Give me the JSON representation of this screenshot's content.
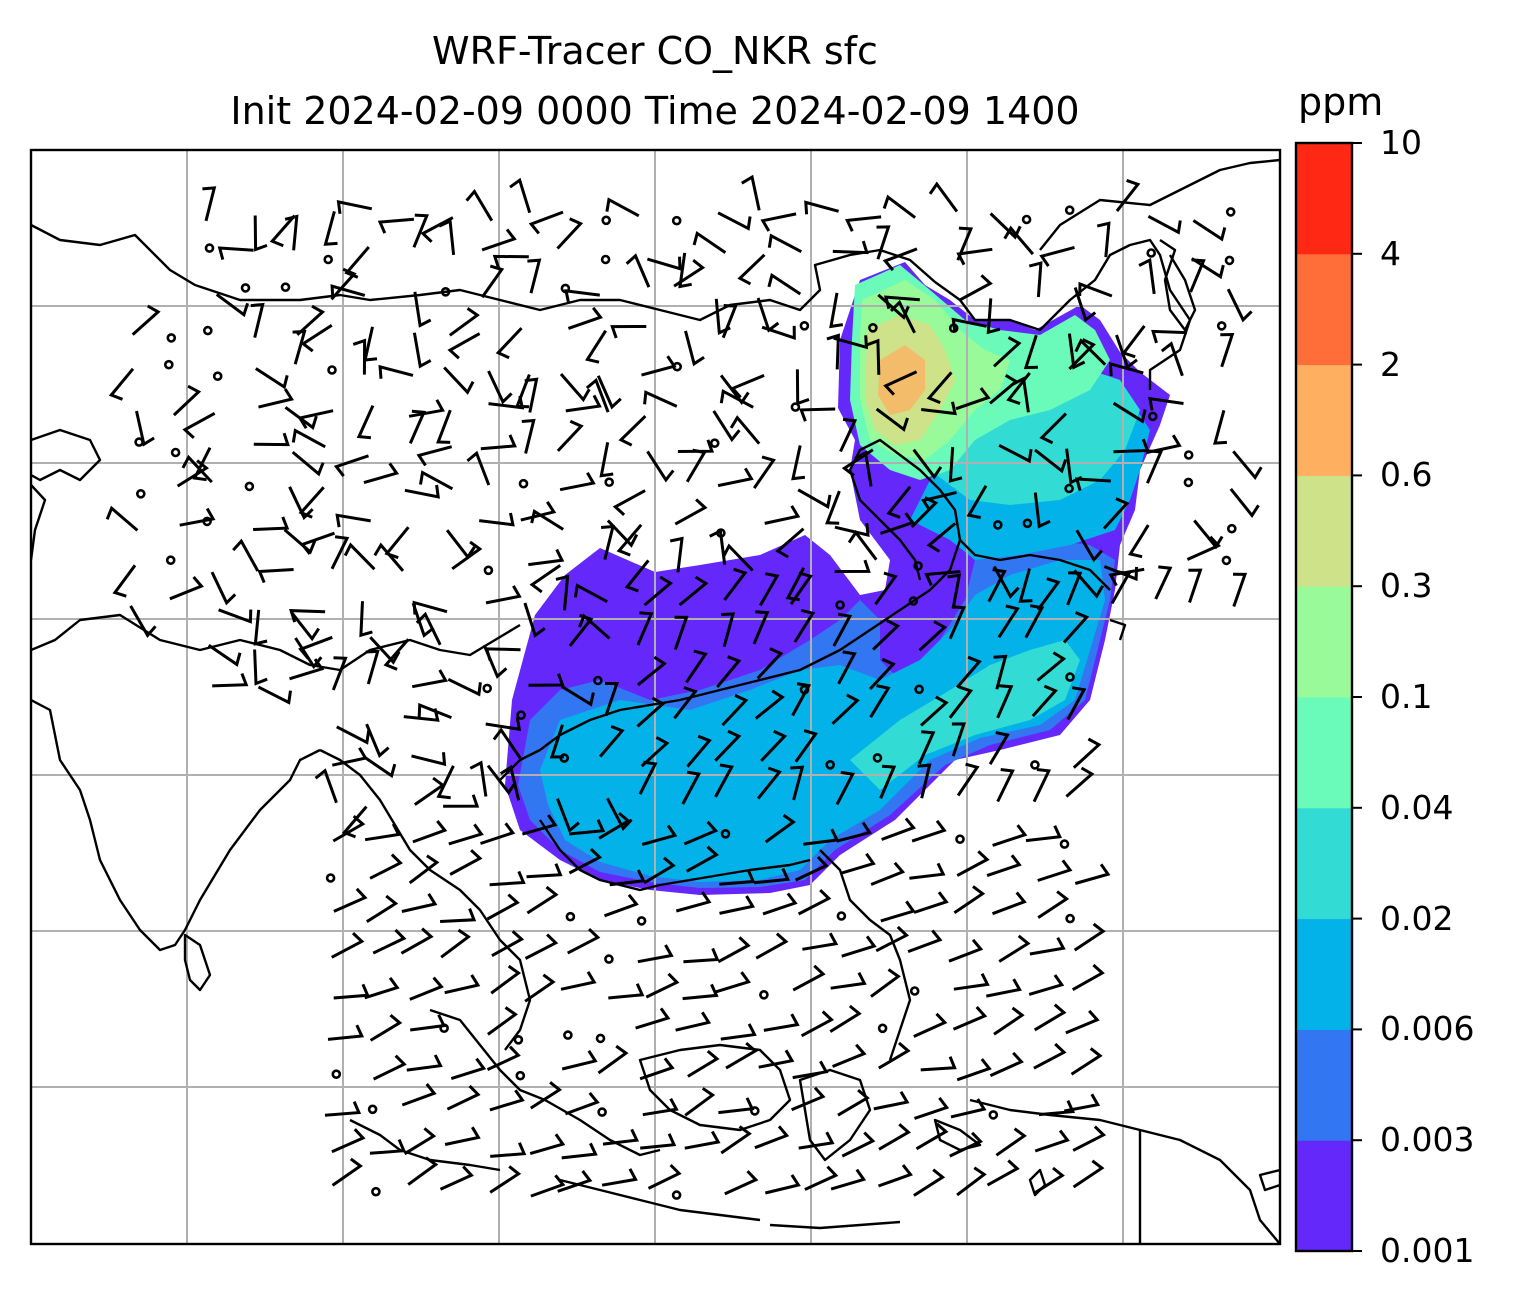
{
  "title": {
    "line1": "WRF-Tracer CO_NKR sfc",
    "line2": "Init 2024-02-09 0000 Time 2024-02-09 1400"
  },
  "colorbar": {
    "unit": "ppm",
    "ticks": [
      "0.001",
      "0.003",
      "0.006",
      "0.02",
      "0.04",
      "0.1",
      "0.3",
      "0.6",
      "2",
      "4",
      "10"
    ],
    "colors": [
      "#6428fa",
      "#3276f2",
      "#04b2ea",
      "#32dcd4",
      "#6afbba",
      "#98fa98",
      "#cee28a",
      "#ffaf60",
      "#ff6d38",
      "#ff2814"
    ]
  },
  "map": {
    "gridlines": true,
    "field": "CO_NKR tracer concentration at surface",
    "overlay": "wind barbs"
  }
}
